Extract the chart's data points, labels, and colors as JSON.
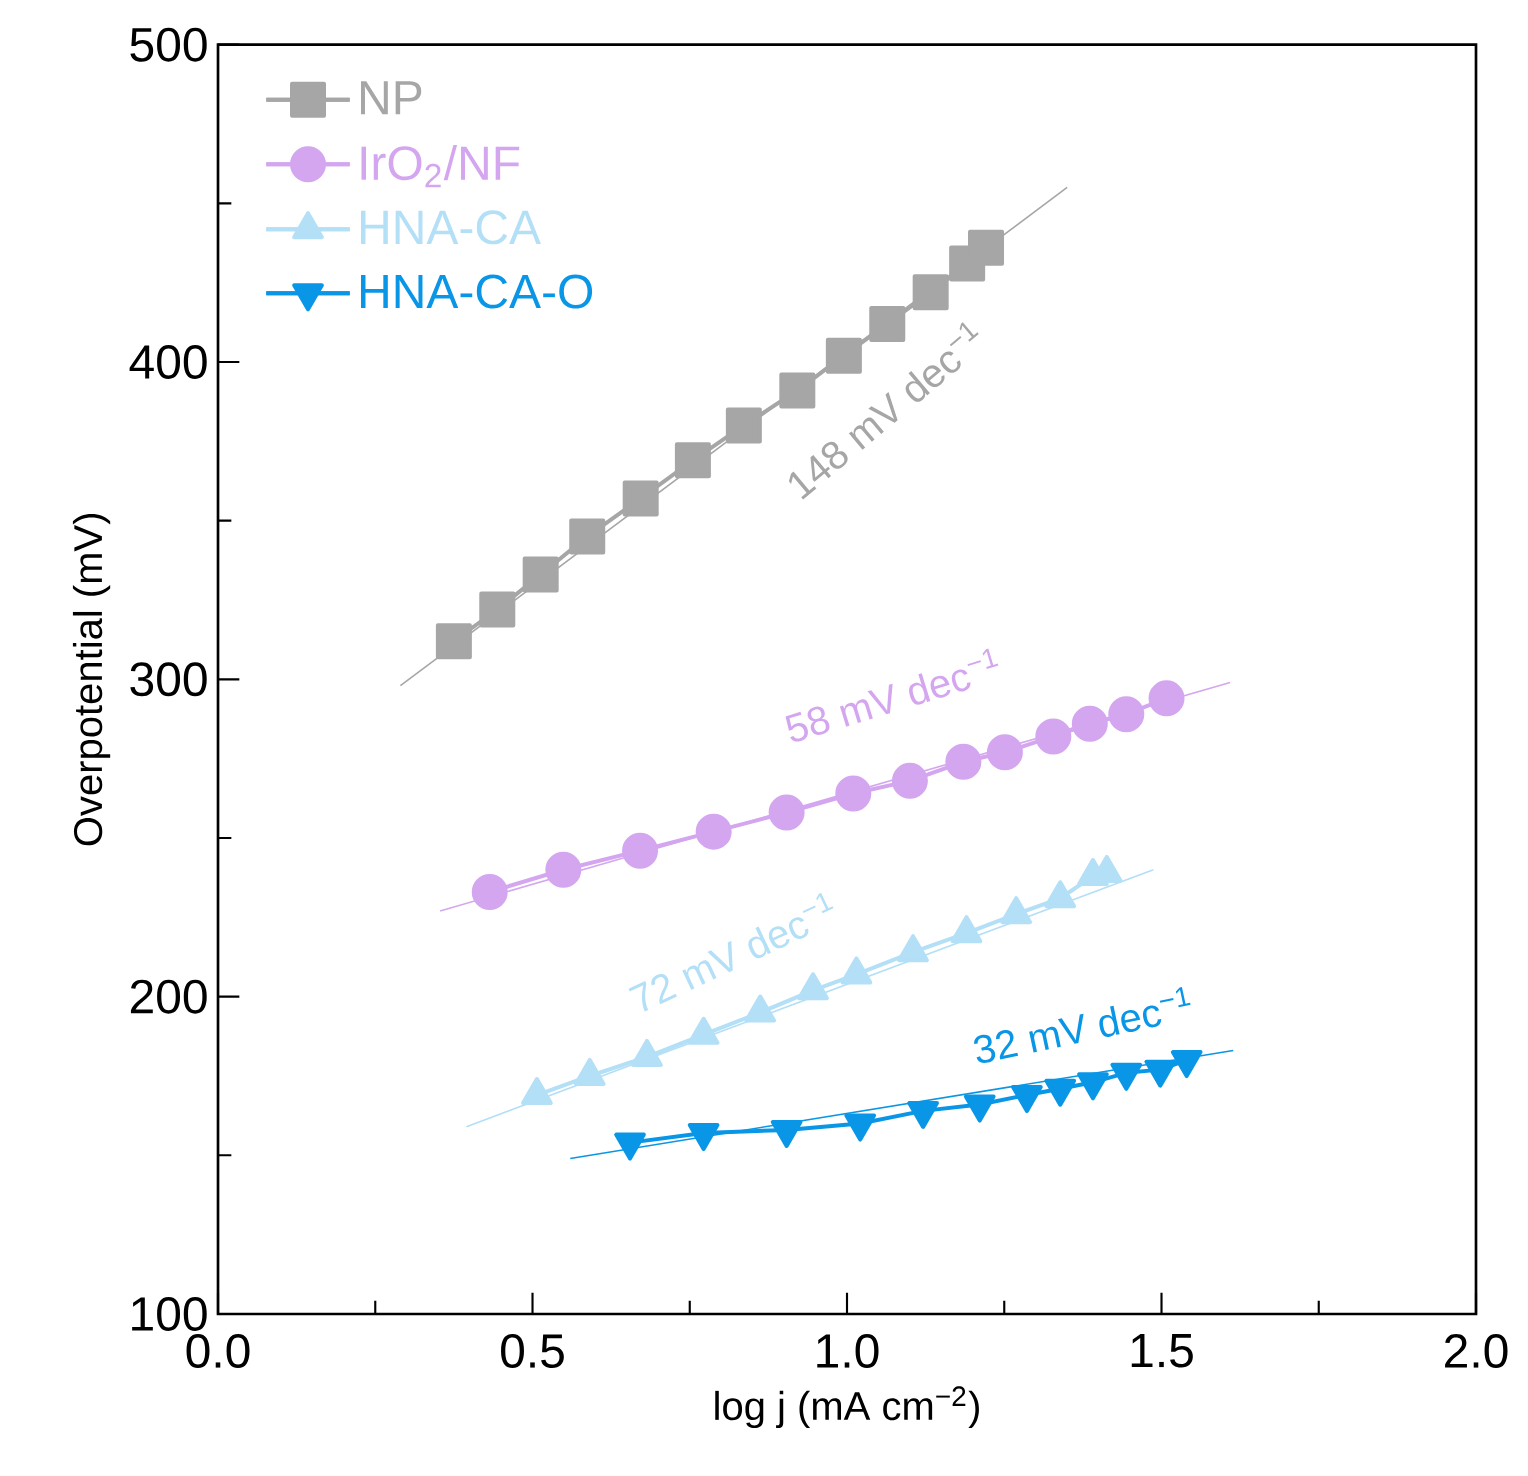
{
  "chart_data": {
    "type": "line",
    "xlabel": "log j (mA cm$^{−2}$)",
    "ylabel": "Overpotential (mV)",
    "xlim": [
      0,
      2
    ],
    "ylim": [
      100,
      500
    ],
    "xticks": [
      {
        "value": 0,
        "label": "0.0"
      },
      {
        "value": 0.5,
        "label": "0.5"
      },
      {
        "value": 1,
        "label": "1.0"
      },
      {
        "value": 1.5,
        "label": "1.5"
      },
      {
        "value": 2,
        "label": "2.0"
      }
    ],
    "yticks": [
      100,
      200,
      300,
      400,
      500
    ],
    "legend": "top left",
    "grid": false,
    "series": [
      {
        "name": "NP",
        "color": "#a6a6a6",
        "marker": "square",
        "x": [
          0.375,
          0.444,
          0.513,
          0.587,
          0.672,
          0.755,
          0.836,
          0.921,
          0.995,
          1.064,
          1.133,
          1.191,
          1.221
        ],
        "values": [
          312,
          322,
          333,
          345,
          357,
          369,
          380,
          391,
          402,
          412,
          422,
          431,
          436
        ]
      },
      {
        "name": "IrO$_{2}$/NF",
        "color": "#d4a6f0",
        "marker": "circle",
        "x": [
          0.432,
          0.549,
          0.671,
          0.788,
          0.904,
          1.01,
          1.1,
          1.185,
          1.251,
          1.328,
          1.386,
          1.444,
          1.508
        ],
        "values": [
          233,
          240,
          246,
          252,
          258,
          264,
          268,
          274,
          277,
          282,
          286,
          289,
          294
        ]
      },
      {
        "name": "HNA-CA",
        "color": "#b3dff7",
        "marker": "triangle",
        "x": [
          0.507,
          0.591,
          0.682,
          0.772,
          0.862,
          0.946,
          1.015,
          1.105,
          1.19,
          1.269,
          1.339,
          1.391,
          1.413
        ],
        "values": [
          169,
          175,
          181,
          188,
          195,
          202,
          207,
          214,
          220,
          226,
          231,
          238,
          239
        ]
      },
      {
        "name": "HNA-CA-O",
        "color": "#0a96e6",
        "marker": "triangle down",
        "x": [
          0.655,
          0.772,
          0.904,
          1.021,
          1.121,
          1.211,
          1.286,
          1.339,
          1.391,
          1.444,
          1.498,
          1.54
        ],
        "values": [
          154,
          157,
          158,
          160,
          164,
          166,
          169,
          171,
          173,
          176,
          177,
          180
        ]
      },
      {
        "type": "line",
        "color": "#a6a6a6",
        "marker": "none",
        "x": [
          0.29,
          1.35
        ],
        "values": [
          298,
          455
        ]
      },
      {
        "type": "line",
        "color": "#d4a6f0",
        "marker": "none",
        "x": [
          0.353,
          1.609
        ],
        "values": [
          227,
          299
        ]
      },
      {
        "type": "line",
        "color": "#b3dff7",
        "marker": "none",
        "x": [
          0.395,
          1.487
        ],
        "values": [
          159,
          240
        ]
      },
      {
        "type": "line",
        "color": "#0a96e6",
        "marker": "none",
        "x": [
          0.56,
          1.614
        ],
        "values": [
          149,
          183
        ]
      }
    ],
    "annotations": [
      "148 mV dec$^{−1}$",
      "58 mV dec$^{−1}$",
      "72 mV dec$^{−1}$",
      "32 mV dec$^{−1}$"
    ]
  }
}
